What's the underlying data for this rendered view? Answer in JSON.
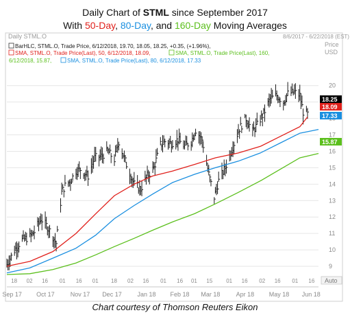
{
  "title": {
    "line1_prefix": "Daily Chart of ",
    "line1_ticker": "STML",
    "line1_suffix": " since September 2017",
    "line2_prefix": "With ",
    "line2_50": "50-Day",
    "line2_sep1": ", ",
    "line2_80": "80-Day",
    "line2_sep2": ", and ",
    "line2_160": "160-Day",
    "line2_suffix": " Moving Averages"
  },
  "header": {
    "left": "Daily STML.O",
    "right": "8/6/2017 - 6/22/2018 (EST)",
    "price": "Price",
    "usd": "USD"
  },
  "legend": {
    "line1": "BarHLC, STML.O, Trade Price, 6/12/2018, 19.70, 18.05, 18.25, +0.35, (+1.96%),",
    "line2a": "SMA, STML.O, Trade Price(Last),  50, 6/12/2018, 18.09,",
    "line2b": "SMA, STML.O, Trade Price(Last),  160,",
    "line3a": "6/12/2018, 15.87,",
    "line3b": "SMA, STML.O, Trade Price(Last),  80, 6/12/2018, 17.33"
  },
  "colors": {
    "bars": "#1a1a1a",
    "sma50": "#e0201b",
    "sma80": "#1a8fe0",
    "sma160": "#5bbf1c",
    "grid": "#e6e6e6"
  },
  "axis": {
    "auto": "Auto",
    "day_ticks": [
      "18",
      "02",
      "16",
      "01",
      "16",
      "01",
      "18",
      "02",
      "16",
      "01",
      "16",
      "01",
      "15",
      "01",
      "16",
      "02",
      "16",
      "01",
      "16",
      "01",
      "16",
      "01",
      "15"
    ],
    "month_labels": [
      "Sep 17",
      "Oct 17",
      "Nov 17",
      "Dec 17",
      "Jan 18",
      "Feb 18",
      "Mar 18",
      "Apr 18",
      "May 18",
      "Jun 18"
    ]
  },
  "badges": {
    "last_price": "18.25",
    "sma50": "18.09",
    "sma80": "17.33",
    "sma160": "15.87"
  },
  "caption": "Chart courtesy of Thomson Reuters Eikon",
  "chart_data": {
    "type": "line",
    "title": "Daily Chart of STML since September 2017",
    "ylabel": "Price USD",
    "ylim": [
      8.5,
      21.2
    ],
    "y_ticks": [
      9,
      10,
      11,
      12,
      13,
      14,
      15,
      16,
      17,
      18,
      19,
      20
    ],
    "x_range": [
      "2017-09-11",
      "2018-06-22"
    ],
    "series": [
      {
        "name": "BarHLC STML.O Trade Price (close)",
        "x": [
          "2017-09-11",
          "2017-09-15",
          "2017-09-20",
          "2017-09-25",
          "2017-10-02",
          "2017-10-06",
          "2017-10-12",
          "2017-10-18",
          "2017-10-23",
          "2017-10-26",
          "2017-10-31",
          "2017-11-03",
          "2017-11-08",
          "2017-11-13",
          "2017-11-17",
          "2017-11-24",
          "2017-11-30",
          "2017-12-06",
          "2017-12-12",
          "2017-12-18",
          "2017-12-22",
          "2017-12-29",
          "2018-01-05",
          "2018-01-11",
          "2018-01-17",
          "2018-01-23",
          "2018-01-29",
          "2018-02-02",
          "2018-02-08",
          "2018-02-14",
          "2018-02-20",
          "2018-02-26",
          "2018-03-02",
          "2018-03-08",
          "2018-03-14",
          "2018-03-19",
          "2018-03-23",
          "2018-03-29",
          "2018-04-05",
          "2018-04-11",
          "2018-04-17",
          "2018-04-23",
          "2018-04-27",
          "2018-05-03",
          "2018-05-09",
          "2018-05-15",
          "2018-05-21",
          "2018-05-25",
          "2018-05-31",
          "2018-06-05",
          "2018-06-08",
          "2018-06-12"
        ],
        "values": [
          9.1,
          9.6,
          10.2,
          10.6,
          10.8,
          11.1,
          11.9,
          11.4,
          10.8,
          10.4,
          13.5,
          13.9,
          14.2,
          14.8,
          14.9,
          14.5,
          15.6,
          15.7,
          16.0,
          15.5,
          16.6,
          15.2,
          14.0,
          13.7,
          14.5,
          15.0,
          16.4,
          16.6,
          16.5,
          16.7,
          16.3,
          16.6,
          17.3,
          16.7,
          14.6,
          13.2,
          14.2,
          15.0,
          16.3,
          17.4,
          18.0,
          17.2,
          17.6,
          18.3,
          19.2,
          19.4,
          19.0,
          19.5,
          19.6,
          19.4,
          18.4,
          18.25
        ]
      },
      {
        "name": "SMA 50",
        "x": [
          "2017-09-11",
          "2017-10-02",
          "2017-10-23",
          "2017-11-13",
          "2017-12-01",
          "2017-12-18",
          "2018-01-05",
          "2018-01-22",
          "2018-02-09",
          "2018-03-01",
          "2018-03-20",
          "2018-04-10",
          "2018-04-30",
          "2018-05-18",
          "2018-06-05",
          "2018-06-12"
        ],
        "values": [
          9.0,
          9.3,
          9.9,
          11.0,
          12.2,
          13.3,
          14.0,
          14.5,
          14.8,
          15.2,
          15.6,
          15.9,
          16.3,
          16.9,
          17.5,
          18.09
        ]
      },
      {
        "name": "SMA 80",
        "x": [
          "2017-09-11",
          "2017-10-02",
          "2017-10-23",
          "2017-11-13",
          "2017-12-01",
          "2017-12-18",
          "2018-01-05",
          "2018-01-22",
          "2018-02-09",
          "2018-03-01",
          "2018-03-20",
          "2018-04-10",
          "2018-04-30",
          "2018-05-18",
          "2018-06-05",
          "2018-06-22"
        ],
        "values": [
          8.6,
          8.9,
          9.5,
          10.1,
          10.9,
          11.9,
          12.7,
          13.4,
          14.1,
          14.6,
          15.0,
          15.4,
          15.9,
          16.5,
          17.1,
          17.33
        ]
      },
      {
        "name": "SMA 160",
        "x": [
          "2017-09-11",
          "2017-10-02",
          "2017-10-23",
          "2017-11-13",
          "2017-12-01",
          "2017-12-18",
          "2018-01-05",
          "2018-01-22",
          "2018-02-09",
          "2018-03-01",
          "2018-03-20",
          "2018-04-10",
          "2018-04-30",
          "2018-05-18",
          "2018-06-05",
          "2018-06-22"
        ],
        "values": [
          8.5,
          8.55,
          8.8,
          9.2,
          9.7,
          10.2,
          10.7,
          11.2,
          11.7,
          12.2,
          12.8,
          13.5,
          14.2,
          14.9,
          15.6,
          15.87
        ]
      }
    ]
  }
}
